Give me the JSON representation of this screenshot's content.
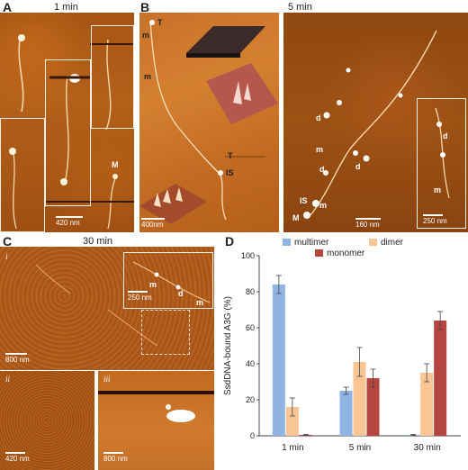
{
  "panels": {
    "a": {
      "letter": "A",
      "time": "1 min",
      "scale": "420 nm",
      "marker": "M"
    },
    "b": {
      "letter": "B",
      "time": "5 min",
      "left_marks": [
        "T",
        "m",
        "m",
        "T",
        "IS"
      ],
      "left_scale": "400nm",
      "right_marks": [
        "d",
        "m",
        "d",
        "d",
        "IS",
        "m",
        "M"
      ],
      "right_scale": "160 nm",
      "inset_marks": [
        "d",
        "m"
      ],
      "inset_scale": "250 nm"
    },
    "c": {
      "letter": "C",
      "time": "30 min",
      "roman_i": "i",
      "scale_i": "800 nm",
      "inset_marks": [
        "m",
        "d",
        "m"
      ],
      "inset_scale": "250 nm",
      "roman_ii": "ii",
      "scale_ii": "420 nm",
      "roman_iii": "iii",
      "scale_iii": "800 nm"
    },
    "d": {
      "letter": "D"
    }
  },
  "chart_data": {
    "type": "bar",
    "categories": [
      "1 min",
      "5 min",
      "30 min"
    ],
    "series": [
      {
        "name": "multimer",
        "values": [
          84,
          25,
          0.5
        ],
        "errors": [
          5,
          2,
          0.3
        ],
        "color": "#8fb4e3"
      },
      {
        "name": "dimer",
        "values": [
          16,
          41,
          35
        ],
        "errors": [
          5,
          8,
          5
        ],
        "color": "#f9c594"
      },
      {
        "name": "monomer",
        "values": [
          0.5,
          32,
          64
        ],
        "errors": [
          0.3,
          5,
          5
        ],
        "color": "#b5453f"
      }
    ],
    "ylabel": "SsdDNA-bound A3G (%)",
    "ylim": [
      0,
      100
    ],
    "yticks": [
      0,
      20,
      40,
      60,
      80,
      100
    ],
    "legend": "top"
  }
}
